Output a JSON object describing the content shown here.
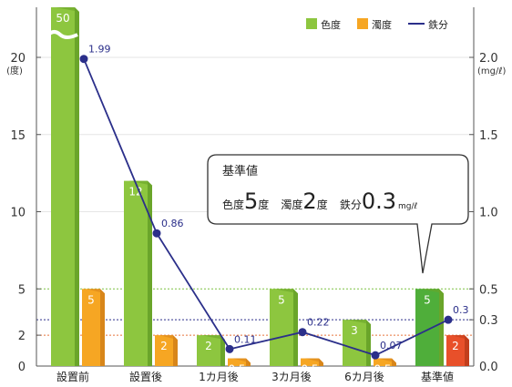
{
  "chart_data": {
    "type": "bar",
    "categories": [
      "設置前",
      "設置後",
      "1カ月後",
      "3カ月後",
      "6カ月後",
      "基準値"
    ],
    "highlight_category": "基準値",
    "left_axis": {
      "unit": "(度)",
      "ticks": [
        "0",
        "2",
        "5",
        "10",
        "15",
        "20"
      ],
      "break_label": "50"
    },
    "right_axis": {
      "unit": "(mg/ℓ)",
      "ticks": [
        "0.0",
        "0.3",
        "0.5",
        "1.0",
        "1.5",
        "2.0"
      ]
    },
    "series": [
      {
        "name": "色度",
        "axis": "left",
        "values": [
          50,
          12,
          2,
          5,
          3,
          5
        ],
        "labels": [
          "50",
          "12",
          "2",
          "5",
          "3",
          "5"
        ]
      },
      {
        "name": "濁度",
        "axis": "left",
        "values": [
          5,
          2,
          0.5,
          0.5,
          0.5,
          2
        ],
        "labels": [
          "5",
          "2",
          "0.5",
          "0.5",
          "0.5",
          "2"
        ]
      },
      {
        "name": "鉄分",
        "axis": "right",
        "type": "line",
        "values": [
          1.99,
          0.86,
          0.11,
          0.22,
          0.07,
          0.3
        ],
        "labels": [
          "1.99",
          "0.86",
          "0.11",
          "0.22",
          "0.07",
          "0.3"
        ]
      }
    ],
    "reference_lines": [
      {
        "axis": "left",
        "value": 5,
        "color": "#7cc142"
      },
      {
        "axis": "left",
        "value": 2,
        "color": "#e8743b"
      },
      {
        "axis": "right",
        "value": 0.3,
        "color": "#2b2f8a"
      }
    ],
    "callout": {
      "title": "基準値",
      "items": [
        {
          "label": "色度",
          "value": "5",
          "unit": "度"
        },
        {
          "label": "濁度",
          "value": "2",
          "unit": "度"
        },
        {
          "label": "鉄分",
          "value": "0.3",
          "unit": "mg/ℓ"
        }
      ]
    }
  },
  "colors": {
    "green": "#8dc63f",
    "green_dark": "#6aa52a",
    "green_highlight": "#4fae3a",
    "orange": "#f6a623",
    "orange_dark": "#d8861a",
    "red": "#e8502a",
    "navy": "#2b2f8a"
  }
}
